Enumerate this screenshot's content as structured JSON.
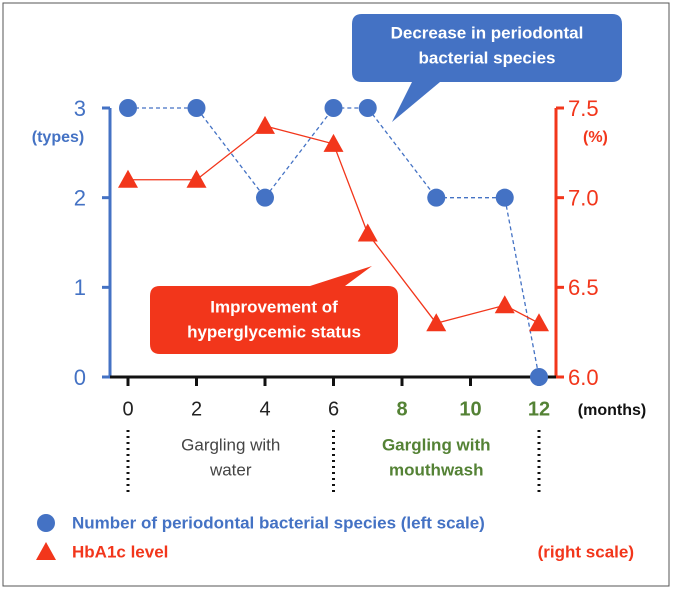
{
  "chart_data": {
    "type": "line",
    "x": [
      0,
      2,
      4,
      6,
      7,
      9,
      11,
      12
    ],
    "series": [
      {
        "name": "Number of periodontal bacterial species (left scale)",
        "color": "#4472c4",
        "axis": "y",
        "marker": "circle",
        "dashed": true,
        "values": [
          3,
          3,
          2,
          3,
          3,
          2,
          2,
          0
        ]
      },
      {
        "name": "HbA1c level",
        "color": "#f2361b",
        "axis": "y2",
        "marker": "triangle",
        "dashed": false,
        "values": [
          7.1,
          7.1,
          7.4,
          7.3,
          6.8,
          6.3,
          6.4,
          6.3
        ]
      }
    ],
    "xlim": [
      -0.5,
      12.5
    ],
    "xticks": [
      0,
      2,
      4,
      6,
      8,
      10,
      12
    ],
    "xtick_colors": [
      "#222222",
      "#222222",
      "#222222",
      "#222222",
      "#548235",
      "#548235",
      "#548235"
    ],
    "x_unit": "(months)",
    "ylim": [
      0,
      3
    ],
    "yticks": [
      0,
      1,
      2,
      3
    ],
    "y_unit": "(types)",
    "y2lim": [
      6,
      7.5
    ],
    "y2ticks": [
      {
        "value": 6,
        "label": "6.0"
      },
      6.5,
      {
        "value": 7,
        "label": "7.0"
      },
      7.5
    ],
    "y2_unit": "(%)",
    "phase_boundaries": [
      0,
      6,
      12
    ],
    "phases": [
      {
        "lines": [
          "Gargling with",
          "water"
        ],
        "color": "#444444"
      },
      {
        "lines": [
          "Gargling with",
          "mouthwash"
        ],
        "color": "#548235"
      }
    ],
    "annotations": [
      {
        "lines": [
          "Decrease in periodontal",
          "bacterial species"
        ],
        "color": "#4472c4"
      },
      {
        "lines": [
          "Improvement of",
          "hyperglycemic status"
        ],
        "color": "#f2361b"
      }
    ],
    "legend_note": "(right scale)"
  }
}
